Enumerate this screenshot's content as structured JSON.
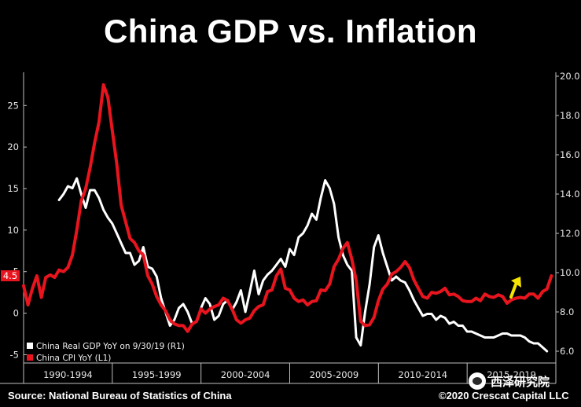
{
  "title": "China GDP vs. Inflation",
  "source": "Source: National Bureau of Statistics of China",
  "copyright": "©2020 Crescat Capital LLC",
  "watermark": "西泽研究院",
  "colors": {
    "gdp": "#ffffff",
    "cpi": "#e8141e",
    "arrow": "#f5e400",
    "background": "#000000"
  },
  "chart_data": {
    "type": "line",
    "x_categories": [
      "1990-1994",
      "1995-1999",
      "2000-2004",
      "2005-2009",
      "2010-2014",
      "2015-2019"
    ],
    "y_left": {
      "ticks": [
        -5,
        0,
        5,
        10,
        15,
        20,
        25
      ],
      "ylim": [
        -6,
        29
      ]
    },
    "y_right": {
      "ticks": [
        6.0,
        8.0,
        10.0,
        12.0,
        14.0,
        16.0,
        18.0,
        20.0
      ],
      "ylim": [
        5.4,
        20.2
      ]
    },
    "last_value_label": "4.5",
    "arrow_annotation": "up",
    "series": [
      {
        "name": "China Real GDP YoY on 9/30/19 (R1)",
        "axis": "right",
        "x": [
          1992.0,
          1992.25,
          1992.5,
          1992.75,
          1993.0,
          1993.25,
          1993.5,
          1993.75,
          1994.0,
          1994.25,
          1994.5,
          1994.75,
          1995.0,
          1995.25,
          1995.5,
          1995.75,
          1996.0,
          1996.25,
          1996.5,
          1996.75,
          1997.0,
          1997.25,
          1997.5,
          1997.75,
          1998.0,
          1998.25,
          1998.5,
          1998.75,
          1999.0,
          1999.25,
          1999.5,
          1999.75,
          2000.0,
          2000.25,
          2000.5,
          2000.75,
          2001.0,
          2001.25,
          2001.5,
          2001.75,
          2002.0,
          2002.25,
          2002.5,
          2002.75,
          2003.0,
          2003.25,
          2003.5,
          2003.75,
          2004.0,
          2004.25,
          2004.5,
          2004.75,
          2005.0,
          2005.25,
          2005.5,
          2005.75,
          2006.0,
          2006.25,
          2006.5,
          2006.75,
          2007.0,
          2007.25,
          2007.5,
          2007.75,
          2008.0,
          2008.25,
          2008.5,
          2008.75,
          2009.0,
          2009.25,
          2009.5,
          2009.75,
          2010.0,
          2010.25,
          2010.5,
          2010.75,
          2011.0,
          2011.25,
          2011.5,
          2011.75,
          2012.0,
          2012.25,
          2012.5,
          2012.75,
          2013.0,
          2013.25,
          2013.5,
          2013.75,
          2014.0,
          2014.25,
          2014.5,
          2014.75,
          2015.0,
          2015.25,
          2015.5,
          2015.75,
          2016.0,
          2016.25,
          2016.5,
          2016.75,
          2017.0,
          2017.25,
          2017.5,
          2017.75,
          2018.0,
          2018.25,
          2018.5,
          2018.75,
          2019.0,
          2019.25,
          2019.5
        ],
        "values": [
          13.7,
          14.0,
          14.4,
          14.3,
          14.8,
          14.0,
          13.3,
          14.2,
          14.2,
          13.8,
          13.2,
          12.8,
          12.5,
          12.0,
          11.5,
          11.0,
          11.0,
          10.4,
          10.6,
          11.3,
          10.3,
          10.2,
          9.8,
          8.7,
          8.0,
          7.3,
          7.6,
          8.2,
          8.4,
          8.0,
          7.4,
          7.5,
          8.2,
          8.7,
          8.4,
          7.6,
          7.8,
          8.4,
          8.6,
          8.1,
          8.5,
          9.1,
          8.0,
          9.0,
          10.1,
          8.9,
          9.6,
          9.9,
          10.1,
          10.4,
          10.7,
          10.3,
          11.2,
          10.9,
          11.8,
          12.0,
          12.4,
          13.0,
          12.7,
          13.8,
          14.7,
          14.3,
          13.5,
          11.8,
          10.9,
          10.4,
          10.1,
          6.7,
          6.3,
          8.0,
          9.4,
          11.3,
          11.9,
          11.0,
          10.3,
          9.6,
          9.8,
          9.6,
          9.5,
          9.1,
          8.6,
          8.2,
          7.8,
          7.9,
          7.9,
          7.6,
          7.8,
          7.7,
          7.4,
          7.5,
          7.3,
          7.3,
          7.0,
          7.0,
          6.9,
          6.8,
          6.7,
          6.7,
          6.7,
          6.8,
          6.9,
          6.9,
          6.8,
          6.8,
          6.8,
          6.7,
          6.5,
          6.4,
          6.4,
          6.2,
          6.0
        ]
      },
      {
        "name": "China CPI YoY (L1)",
        "axis": "left",
        "x": [
          1990.0,
          1990.25,
          1990.5,
          1990.75,
          1991.0,
          1991.25,
          1991.5,
          1991.75,
          1992.0,
          1992.25,
          1992.5,
          1992.75,
          1993.0,
          1993.25,
          1993.5,
          1993.75,
          1994.0,
          1994.25,
          1994.5,
          1994.75,
          1995.0,
          1995.25,
          1995.5,
          1995.75,
          1996.0,
          1996.25,
          1996.5,
          1996.75,
          1997.0,
          1997.25,
          1997.5,
          1997.75,
          1998.0,
          1998.25,
          1998.5,
          1998.75,
          1999.0,
          1999.25,
          1999.5,
          1999.75,
          2000.0,
          2000.25,
          2000.5,
          2000.75,
          2001.0,
          2001.25,
          2001.5,
          2001.75,
          2002.0,
          2002.25,
          2002.5,
          2002.75,
          2003.0,
          2003.25,
          2003.5,
          2003.75,
          2004.0,
          2004.25,
          2004.5,
          2004.75,
          2005.0,
          2005.25,
          2005.5,
          2005.75,
          2006.0,
          2006.25,
          2006.5,
          2006.75,
          2007.0,
          2007.25,
          2007.5,
          2007.75,
          2008.0,
          2008.25,
          2008.5,
          2008.75,
          2009.0,
          2009.25,
          2009.5,
          2009.75,
          2010.0,
          2010.25,
          2010.5,
          2010.75,
          2011.0,
          2011.25,
          2011.5,
          2011.75,
          2012.0,
          2012.25,
          2012.5,
          2012.75,
          2013.0,
          2013.25,
          2013.5,
          2013.75,
          2014.0,
          2014.25,
          2014.5,
          2014.75,
          2015.0,
          2015.25,
          2015.5,
          2015.75,
          2016.0,
          2016.25,
          2016.5,
          2016.75,
          2017.0,
          2017.25,
          2017.5,
          2017.75,
          2018.0,
          2018.25,
          2018.5,
          2018.75,
          2019.0,
          2019.25,
          2019.5,
          2019.75
        ],
        "values": [
          3.3,
          1.0,
          3.0,
          4.5,
          1.9,
          4.3,
          4.6,
          4.3,
          5.2,
          5.0,
          5.5,
          7.0,
          10.0,
          13.5,
          15.0,
          17.5,
          20.5,
          23.0,
          27.5,
          26.0,
          22.0,
          18.0,
          13.0,
          11.0,
          9.0,
          8.5,
          7.5,
          7.0,
          4.5,
          3.5,
          2.0,
          1.0,
          0.3,
          -0.8,
          -1.3,
          -1.5,
          -1.5,
          -2.2,
          -1.3,
          -1.0,
          0.5,
          0.0,
          0.5,
          0.8,
          1.0,
          1.8,
          1.5,
          0.5,
          -0.8,
          -1.2,
          -0.8,
          -0.6,
          0.3,
          0.8,
          1.0,
          2.6,
          2.8,
          4.5,
          5.3,
          3.0,
          2.8,
          1.8,
          1.4,
          1.6,
          1.0,
          1.4,
          1.5,
          2.8,
          2.7,
          3.5,
          5.6,
          6.5,
          7.8,
          8.5,
          6.5,
          3.9,
          -1.0,
          -1.5,
          -1.4,
          -0.5,
          1.5,
          2.9,
          3.5,
          4.7,
          5.0,
          5.5,
          6.2,
          5.5,
          4.0,
          3.0,
          2.0,
          1.8,
          2.5,
          2.4,
          2.6,
          3.0,
          2.2,
          2.3,
          2.0,
          1.5,
          1.4,
          1.4,
          1.8,
          1.5,
          2.3,
          2.0,
          1.9,
          2.2,
          2.0,
          1.2,
          1.6,
          1.8,
          1.9,
          1.8,
          2.3,
          2.3,
          1.8,
          2.6,
          2.9,
          4.5
        ]
      }
    ]
  }
}
